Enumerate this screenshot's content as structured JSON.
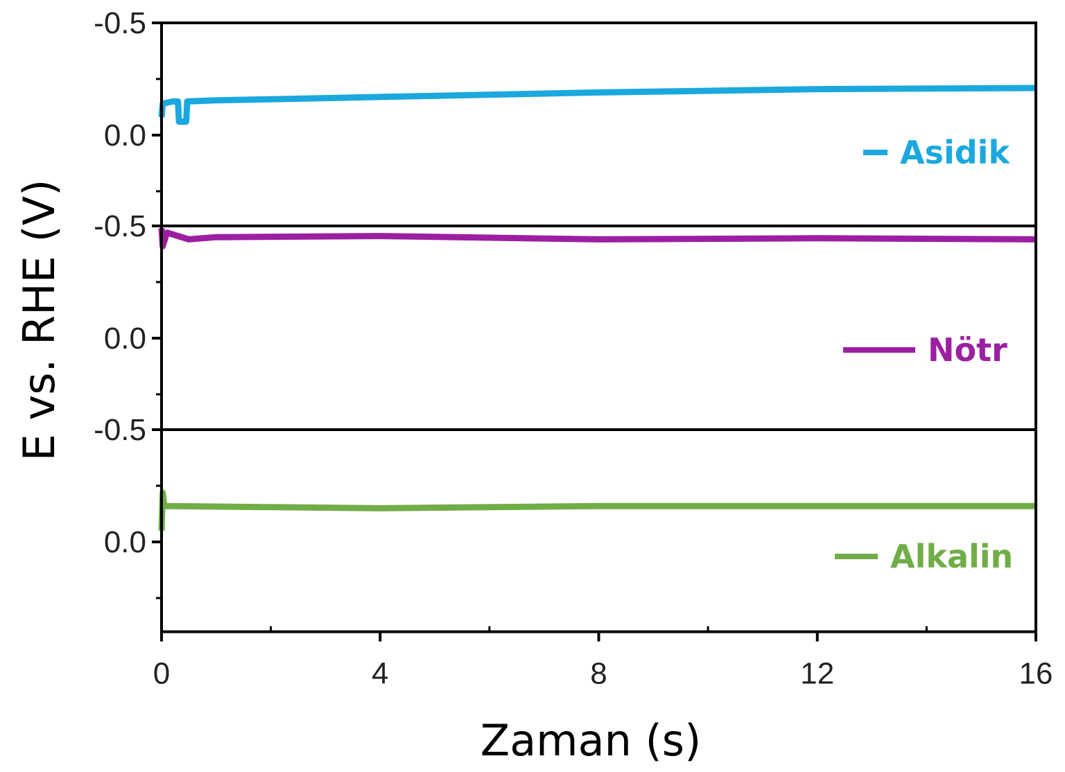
{
  "chart_data": {
    "type": "line",
    "layout": "three stacked panels sharing x axis",
    "xlabel": "Zaman (s)",
    "ylabel": "E vs. RHE (V)",
    "xlim": [
      0,
      16
    ],
    "xticks": [
      "0",
      "4",
      "8",
      "12",
      "16"
    ],
    "x_minor_ticks": [
      2,
      6,
      10,
      14
    ],
    "y_inverted": true,
    "grid": false,
    "legend_placement": "right of each panel",
    "panels": [
      {
        "ylim": [
          -0.5,
          0.4
        ],
        "yticks": [
          "-0.5",
          "0.0"
        ],
        "y_minor_ticks": [
          -0.25,
          0.25
        ],
        "series": {
          "name": "Asidik",
          "color": "#1ba8de",
          "x": [
            0,
            0.02,
            0.2,
            0.3,
            0.32,
            0.45,
            0.47,
            1,
            2,
            4,
            8,
            12,
            16
          ],
          "y": [
            -0.08,
            -0.14,
            -0.15,
            -0.15,
            -0.06,
            -0.06,
            -0.15,
            -0.155,
            -0.16,
            -0.17,
            -0.19,
            -0.205,
            -0.21
          ]
        }
      },
      {
        "ylim": [
          -0.5,
          0.4
        ],
        "yticks": [
          "-0.5",
          "0.0"
        ],
        "y_minor_ticks": [
          -0.25,
          0.25
        ],
        "series": {
          "name": "Nötr",
          "color": "#9c1fa2",
          "x": [
            0,
            0.02,
            0.1,
            0.5,
            1,
            4,
            8,
            12,
            16
          ],
          "y": [
            -0.49,
            -0.41,
            -0.47,
            -0.44,
            -0.45,
            -0.455,
            -0.44,
            -0.445,
            -0.44
          ]
        }
      },
      {
        "ylim": [
          -0.5,
          0.4
        ],
        "yticks": [
          "-0.5",
          "0.0"
        ],
        "y_minor_ticks": [
          -0.25,
          0.25
        ],
        "series": {
          "name": "Alkalin",
          "color": "#70ad47",
          "x": [
            0,
            0.02,
            0.05,
            0.1,
            2,
            4,
            8,
            12,
            16
          ],
          "y": [
            -0.05,
            -0.22,
            -0.16,
            -0.16,
            -0.155,
            -0.15,
            -0.16,
            -0.16,
            -0.16
          ]
        }
      }
    ]
  }
}
